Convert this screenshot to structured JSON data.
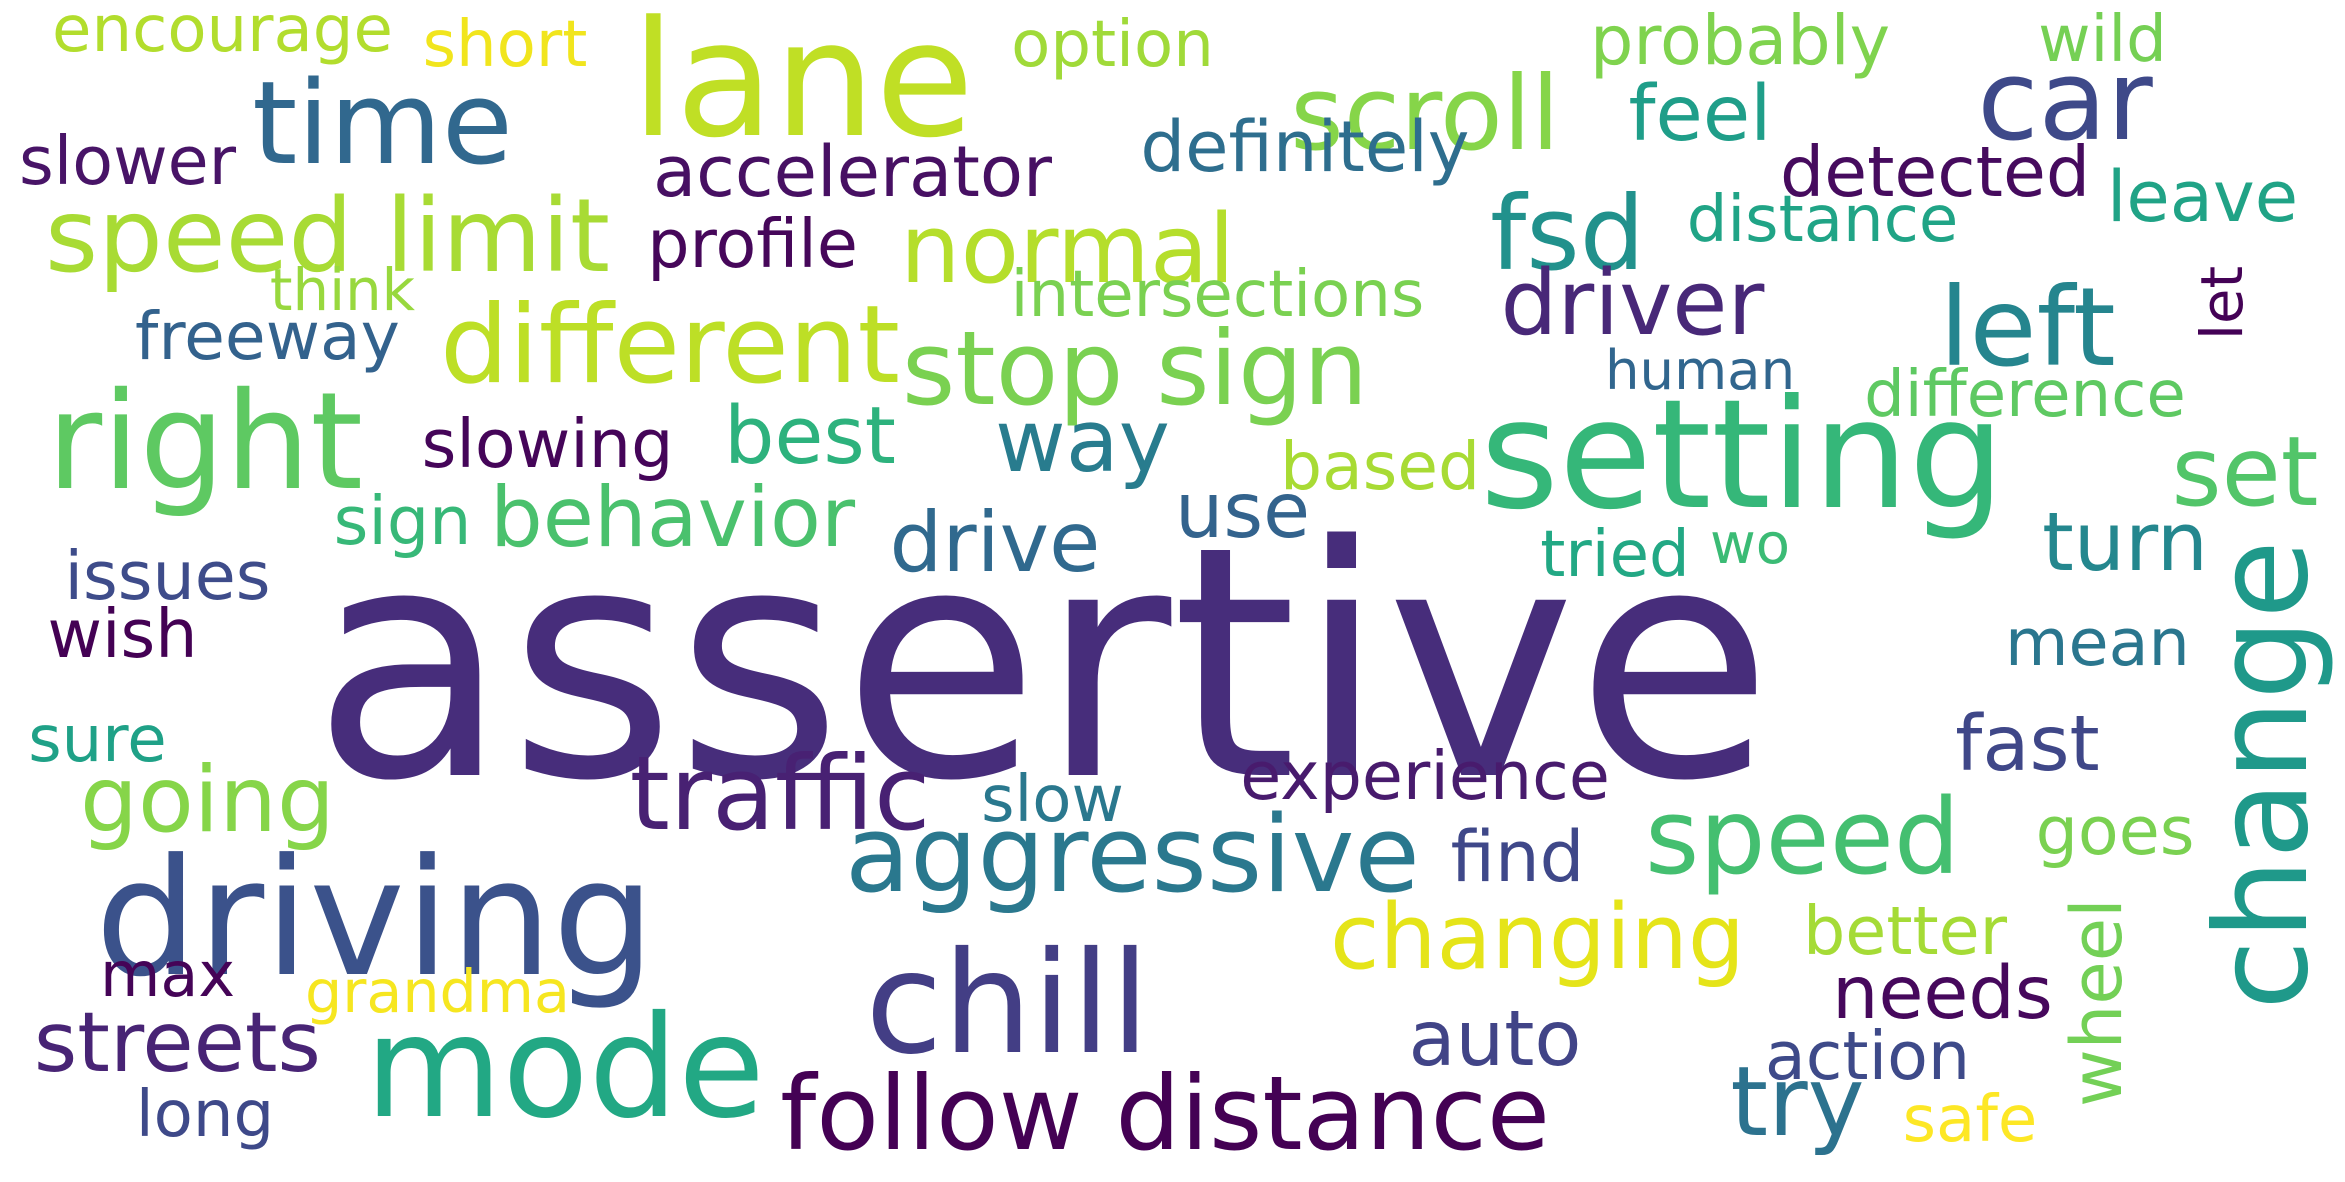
{
  "words": [
    {
      "id": "assertive",
      "text": "assertive",
      "color": "#472d7b"
    },
    {
      "id": "lane",
      "text": "lane",
      "color": "#c0df25"
    },
    {
      "id": "mode",
      "text": "mode",
      "color": "#22a884"
    },
    {
      "id": "driving",
      "text": "driving",
      "color": "#3b528b"
    },
    {
      "id": "chill",
      "text": "chill",
      "color": "#433e85"
    },
    {
      "id": "setting",
      "text": "setting",
      "color": "#35b779"
    },
    {
      "id": "right",
      "text": "right",
      "color": "#5ec962"
    },
    {
      "id": "change",
      "text": "change",
      "color": "#1f998a"
    },
    {
      "id": "time",
      "text": "time",
      "color": "#31688e"
    },
    {
      "id": "car",
      "text": "car",
      "color": "#3e4989"
    },
    {
      "id": "aggressive",
      "text": "aggressive",
      "color": "#2a788e"
    },
    {
      "id": "follow-distance",
      "text": "follow distance",
      "color": "#440154"
    },
    {
      "id": "speed",
      "text": "speed",
      "color": "#44bf70"
    },
    {
      "id": "stop-sign",
      "text": "stop sign",
      "color": "#7ad151"
    },
    {
      "id": "different",
      "text": "different",
      "color": "#bddf26"
    },
    {
      "id": "left",
      "text": "left",
      "color": "#25858e"
    },
    {
      "id": "speed-limit",
      "text": "speed limit",
      "color": "#a8db34"
    },
    {
      "id": "normal",
      "text": "normal",
      "color": "#b5de2b"
    },
    {
      "id": "scroll",
      "text": "scroll",
      "color": "#86d549"
    },
    {
      "id": "changing",
      "text": "changing",
      "color": "#e5e419"
    },
    {
      "id": "way",
      "text": "way",
      "color": "#287c8e"
    },
    {
      "id": "traffic",
      "text": "traffic",
      "color": "#482173"
    },
    {
      "id": "going",
      "text": "going",
      "color": "#86d549"
    },
    {
      "id": "fsd",
      "text": "fsd",
      "color": "#21918c"
    },
    {
      "id": "driver",
      "text": "driver",
      "color": "#482878"
    },
    {
      "id": "set",
      "text": "set",
      "color": "#52c569"
    },
    {
      "id": "streets",
      "text": "streets",
      "color": "#482475"
    },
    {
      "id": "try",
      "text": "try",
      "color": "#2c728e"
    },
    {
      "id": "wheel",
      "text": "wheel",
      "color": "#73d056"
    },
    {
      "id": "behavior",
      "text": "behavior",
      "color": "#4ac16d"
    },
    {
      "id": "auto",
      "text": "auto",
      "color": "#414487"
    },
    {
      "id": "turn",
      "text": "turn",
      "color": "#24878e"
    },
    {
      "id": "best",
      "text": "best",
      "color": "#2db27d"
    },
    {
      "id": "drive",
      "text": "drive",
      "color": "#30698e"
    },
    {
      "id": "mean",
      "text": "mean",
      "color": "#2a768e"
    },
    {
      "id": "fast",
      "text": "fast",
      "color": "#3f4788"
    },
    {
      "id": "needs",
      "text": "needs",
      "color": "#46085c"
    },
    {
      "id": "max",
      "text": "max",
      "color": "#450457"
    },
    {
      "id": "feel",
      "text": "feel",
      "color": "#1f9e89"
    },
    {
      "id": "use",
      "text": "use",
      "color": "#33638d"
    },
    {
      "id": "probably",
      "text": "probably",
      "color": "#7fd34e"
    },
    {
      "id": "accelerator",
      "text": "accelerator",
      "color": "#471063"
    },
    {
      "id": "definitely",
      "text": "definitely",
      "color": "#2e6e8e"
    },
    {
      "id": "let",
      "text": "let",
      "color": "#440256"
    },
    {
      "id": "encourage",
      "text": "encourage",
      "color": "#b2dd2d"
    },
    {
      "id": "profile",
      "text": "profile",
      "color": "#46075a"
    },
    {
      "id": "leave",
      "text": "leave",
      "color": "#20a386"
    },
    {
      "id": "option",
      "text": "option",
      "color": "#a0da39"
    },
    {
      "id": "distance",
      "text": "distance",
      "color": "#20a486"
    },
    {
      "id": "experience",
      "text": "experience",
      "color": "#481b6d"
    },
    {
      "id": "detected",
      "text": "detected",
      "color": "#460b5e"
    },
    {
      "id": "freeway",
      "text": "freeway",
      "color": "#33628d"
    },
    {
      "id": "short",
      "text": "short",
      "color": "#f1e51d"
    },
    {
      "id": "wild",
      "text": "wild",
      "color": "#75d054"
    },
    {
      "id": "slower",
      "text": "slower",
      "color": "#481467"
    },
    {
      "id": "intersections",
      "text": "intersections",
      "color": "#7ad151"
    },
    {
      "id": "issues",
      "text": "issues",
      "color": "#3e4c8a"
    },
    {
      "id": "slowing",
      "text": "slowing",
      "color": "#450559"
    },
    {
      "id": "difference",
      "text": "difference",
      "color": "#5ec962"
    },
    {
      "id": "human",
      "text": "human",
      "color": "#31668e"
    },
    {
      "id": "grandma",
      "text": "grandma",
      "color": "#f6e620"
    },
    {
      "id": "slow",
      "text": "slow",
      "color": "#2a788e"
    },
    {
      "id": "find",
      "text": "find",
      "color": "#3f4889"
    },
    {
      "id": "action",
      "text": "action",
      "color": "#3e4a89"
    },
    {
      "id": "goes",
      "text": "goes",
      "color": "#7ad151"
    },
    {
      "id": "better",
      "text": "better",
      "color": "#a5db36"
    },
    {
      "id": "based",
      "text": "based",
      "color": "#a8db34"
    },
    {
      "id": "tried",
      "text": "tried",
      "color": "#22a884"
    },
    {
      "id": "wo",
      "text": "wo",
      "color": "#3bbb75"
    },
    {
      "id": "sign",
      "text": "sign",
      "color": "#37b878"
    },
    {
      "id": "think",
      "text": "think",
      "color": "#98d83e"
    },
    {
      "id": "sure",
      "text": "sure",
      "color": "#1fa187"
    },
    {
      "id": "wish",
      "text": "wish",
      "color": "#440154"
    },
    {
      "id": "long",
      "text": "long",
      "color": "#3e4989"
    },
    {
      "id": "safe",
      "text": "safe",
      "color": "#fde725"
    }
  ]
}
